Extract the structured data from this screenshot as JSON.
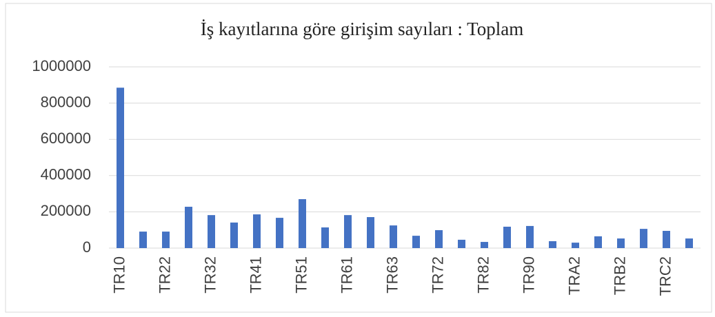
{
  "chart_data": {
    "type": "bar",
    "title": "İş kayıtlarına göre girişim sayıları : Toplam",
    "categories": [
      "TR10",
      null,
      "TR22",
      null,
      "TR32",
      null,
      "TR41",
      null,
      "TR51",
      null,
      "TR61",
      null,
      "TR63",
      null,
      "TR72",
      null,
      "TR82",
      null,
      "TR90",
      null,
      "TRA2",
      null,
      "TRB2",
      null,
      "TRC2",
      null
    ],
    "values": [
      885000,
      91000,
      91000,
      228000,
      182000,
      141000,
      186000,
      167000,
      270000,
      114000,
      182000,
      171000,
      125000,
      68000,
      99000,
      46000,
      34000,
      118000,
      122000,
      38000,
      30000,
      65000,
      53000,
      106000,
      95000,
      53000
    ],
    "color": "#4472c4",
    "ylim": [
      0,
      1000000
    ],
    "yticks": [
      0,
      200000,
      400000,
      600000,
      800000,
      1000000
    ],
    "grid": true
  }
}
